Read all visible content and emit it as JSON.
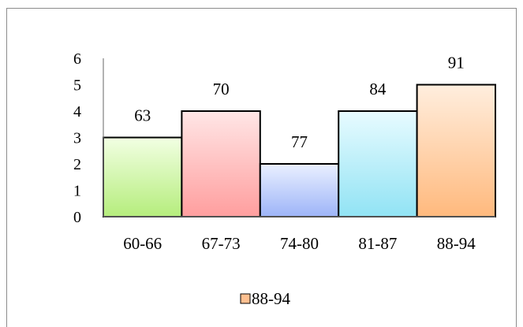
{
  "chart_data": {
    "type": "bar",
    "categories": [
      "60-66",
      "67-73",
      "74-80",
      "81-87",
      "88-94"
    ],
    "values": [
      3,
      4,
      2,
      4,
      5
    ],
    "data_labels": [
      "63",
      "70",
      "77",
      "84",
      "91"
    ],
    "yticks": [
      "0",
      "1",
      "2",
      "3",
      "4",
      "5",
      "6"
    ],
    "ylim": [
      0,
      6
    ],
    "title": "",
    "xlabel": "",
    "ylabel": "",
    "grid": false,
    "bar_gap": 0,
    "legend": {
      "position": "bottom",
      "entries": [
        "88-94"
      ],
      "swatch_color": "#ffc090"
    },
    "bar_colors": [
      {
        "top": "#f2ffe3",
        "bottom": "#b5ed7c"
      },
      {
        "top": "#ffe6e6",
        "bottom": "#ff9e9e"
      },
      {
        "top": "#eaf0ff",
        "bottom": "#9db4f8"
      },
      {
        "top": "#e8fbff",
        "bottom": "#91e3f4"
      },
      {
        "top": "#ffeede",
        "bottom": "#ffb97d"
      }
    ]
  }
}
